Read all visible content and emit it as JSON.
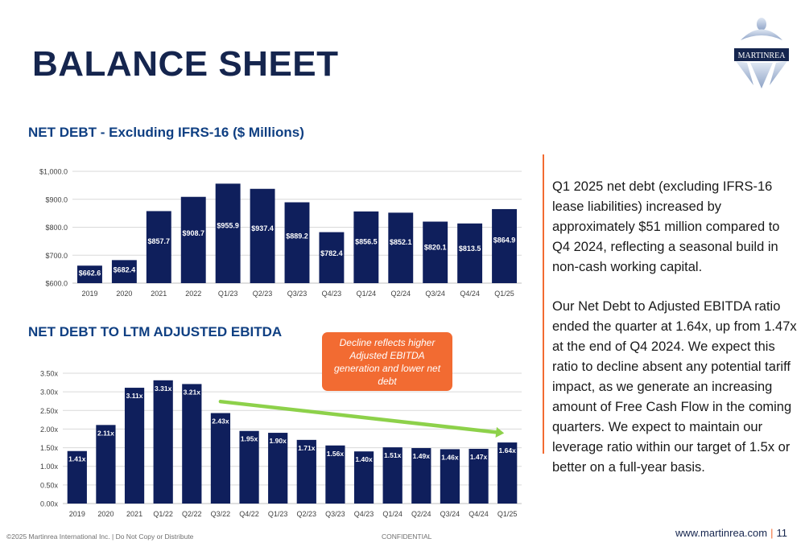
{
  "page": {
    "title": "BALANCE SHEET",
    "logo_text": "MARTINREA",
    "callout": "Decline reflects higher Adjusted EBITDA generation and lower net debt",
    "commentary": [
      "Q1 2025 net debt (excluding IFRS-16 lease liabilities) increased by approximately $51 million compared to Q4 2024, reflecting a seasonal build in non-cash working capital.",
      "Our Net Debt to Adjusted EBITDA ratio ended the quarter at 1.64x, up from 1.47x at the end of Q4 2024. We expect this ratio to decline absent any potential tariff impact, as we generate an increasing amount of Free Cash Flow in the coming quarters. We expect to maintain our leverage ratio within our target of 1.5x or better on a full-year basis."
    ],
    "footer": {
      "copyright": "©2025 Martinrea International Inc. | Do Not Copy or Distribute",
      "confidential": "CONFIDENTIAL",
      "website": "www.martinrea.com",
      "separator": "|",
      "page_number": "11"
    }
  },
  "colors": {
    "title": "#15254e",
    "bar": "#0f1f5c",
    "chart_title": "#0f3f82",
    "accent_orange": "#f26b32",
    "trend_arrow": "#8dd14a",
    "gridline": "#d9d9d9",
    "axis_text": "#404040"
  },
  "chart_data": [
    {
      "type": "bar",
      "title": "NET DEBT - Excluding IFRS-16 ($ Millions)",
      "categories": [
        "2019",
        "2020",
        "2021",
        "2022",
        "Q1/23",
        "Q2/23",
        "Q3/23",
        "Q4/23",
        "Q1/24",
        "Q2/24",
        "Q3/24",
        "Q4/24",
        "Q1/25"
      ],
      "values": [
        662.6,
        682.4,
        857.7,
        908.7,
        955.9,
        937.4,
        889.2,
        782.4,
        856.5,
        852.1,
        820.1,
        813.5,
        864.9
      ],
      "data_labels": [
        "$662.6",
        "$682.4",
        "$857.7",
        "$908.7",
        "$955.9",
        "$937.4",
        "$889.2",
        "$782.4",
        "$856.5",
        "$852.1",
        "$820.1",
        "$813.5",
        "$864.9"
      ],
      "ylim": [
        600,
        1000
      ],
      "yticks": [
        600,
        700,
        800,
        900,
        1000
      ],
      "ytick_labels": [
        "$600.0",
        "$700.0",
        "$800.0",
        "$900.0",
        "$1,000.0"
      ],
      "grid": true
    },
    {
      "type": "bar",
      "title": "NET DEBT TO LTM ADJUSTED EBITDA",
      "categories": [
        "2019",
        "2020",
        "2021",
        "Q1/22",
        "Q2/22",
        "Q3/22",
        "Q4/22",
        "Q1/23",
        "Q2/23",
        "Q3/23",
        "Q4/23",
        "Q1/24",
        "Q2/24",
        "Q3/24",
        "Q4/24",
        "Q1/25"
      ],
      "values": [
        1.41,
        2.11,
        3.11,
        3.31,
        3.21,
        2.43,
        1.95,
        1.9,
        1.71,
        1.56,
        1.4,
        1.51,
        1.49,
        1.46,
        1.47,
        1.64
      ],
      "data_labels": [
        "1.41x",
        "2.11x",
        "3.11x",
        "3.31x",
        "3.21x",
        "2.43x",
        "1.95x",
        "1.90x",
        "1.71x",
        "1.56x",
        "1.40x",
        "1.51x",
        "1.49x",
        "1.46x",
        "1.47x",
        "1.64x"
      ],
      "ylim": [
        0,
        3.5
      ],
      "yticks": [
        0,
        0.5,
        1,
        1.5,
        2,
        2.5,
        3,
        3.5
      ],
      "ytick_labels": [
        "0.00x",
        "0.50x",
        "1.00x",
        "1.50x",
        "2.00x",
        "2.50x",
        "3.00x",
        "3.50x"
      ],
      "grid": true,
      "annotation": "downward trend arrow from Q3/22 to Q1/25"
    }
  ]
}
